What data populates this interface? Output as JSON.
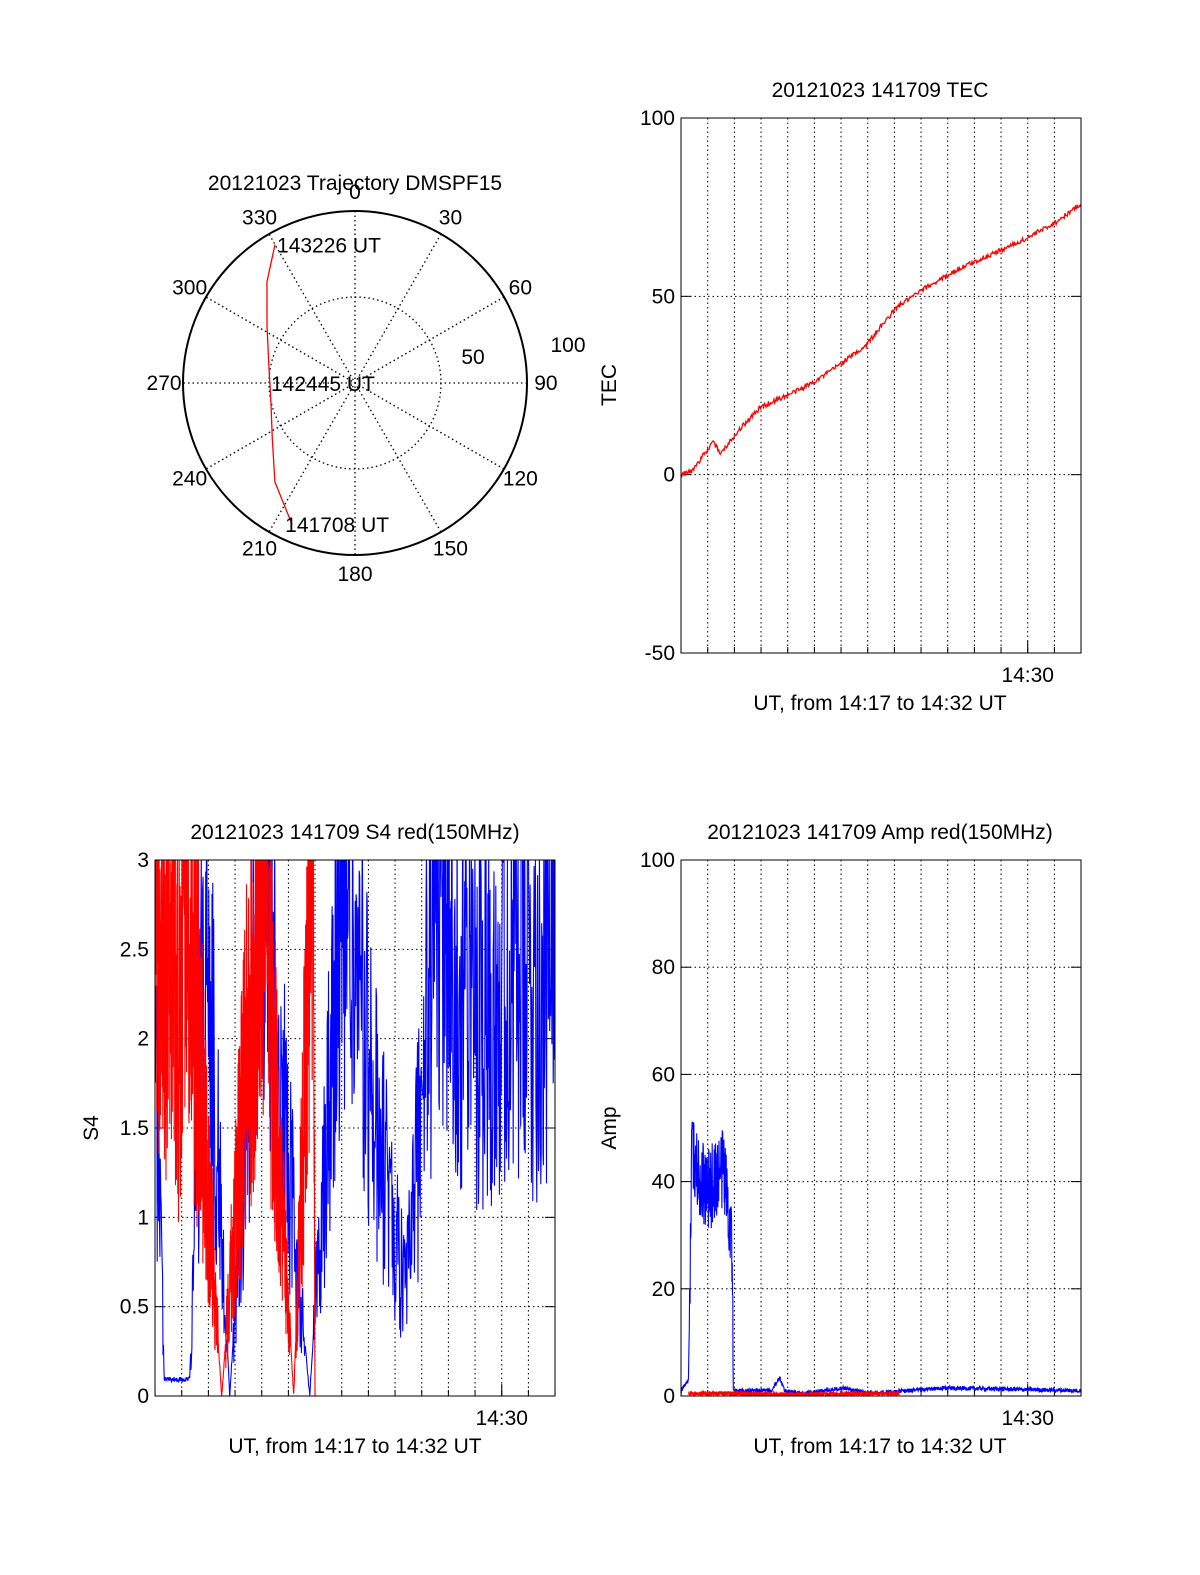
{
  "colors": {
    "red": "#ff0000",
    "blue": "#0000ff",
    "axis": "#000000"
  },
  "polar": {
    "title": "20121023 Trajectory DMSPF15",
    "azimuth_labels": [
      "0",
      "30",
      "60",
      "90",
      "120",
      "150",
      "180",
      "210",
      "240",
      "270",
      "300",
      "330"
    ],
    "radial_labels": [
      "50",
      "100"
    ],
    "annotations": [
      "143226 UT",
      "142445 UT",
      "141708 UT"
    ]
  },
  "chart_data": [
    {
      "type": "polar-trajectory",
      "title": "20121023 Trajectory DMSPF15",
      "series": [
        {
          "color": "red",
          "points": [
            {
              "az": 204,
              "zenith": 90
            },
            {
              "az": 219,
              "zenith": 74
            },
            {
              "az": 236,
              "zenith": 58
            },
            {
              "az": 258,
              "zenith": 50
            },
            {
              "az": 281,
              "zenith": 51
            },
            {
              "az": 303,
              "zenith": 61
            },
            {
              "az": 319,
              "zenith": 78
            },
            {
              "az": 330,
              "zenith": 93
            }
          ]
        }
      ],
      "annotations": [
        {
          "text": "141708 UT",
          "az": 207,
          "zenith": 92
        },
        {
          "text": "142445 UT",
          "az": 270,
          "zenith": 50
        },
        {
          "text": "143226 UT",
          "az": 330,
          "zenith": 93
        }
      ],
      "rings": [
        50,
        100
      ]
    },
    {
      "type": "line",
      "title": "20121023 141709 TEC",
      "xlabel": "UT, from 14:17 to 14:32 UT",
      "ylabel": "TEC",
      "xlim": [
        14.2833,
        14.5333
      ],
      "ylim": [
        -50,
        100
      ],
      "yticks": [
        "100",
        "50",
        "0",
        "-50"
      ],
      "xtick_label": "14:30",
      "series": [
        {
          "color": "red",
          "x": [
            14.2833,
            14.29,
            14.2983,
            14.3033,
            14.3083,
            14.3183,
            14.3333,
            14.3433,
            14.3583,
            14.3733,
            14.3983,
            14.4183,
            14.4383,
            14.4583,
            14.4783,
            14.4983,
            14.5183,
            14.5333
          ],
          "y": [
            0,
            1,
            6,
            9,
            6,
            12,
            19,
            21,
            24,
            28,
            36,
            47,
            53,
            58,
            62,
            66,
            71,
            76
          ]
        }
      ]
    },
    {
      "type": "line",
      "title": "20121023 141709 S4 red(150MHz)",
      "xlabel": "UT, from 14:17 to 14:32 UT",
      "ylabel": "S4",
      "xlim": [
        14.2833,
        14.5333
      ],
      "ylim": [
        0,
        3
      ],
      "yticks": [
        "3",
        "2.5",
        "2",
        "1.5",
        "1",
        "0.5",
        "0"
      ],
      "xtick_label": "14:30",
      "series": [
        {
          "color": "blue",
          "x": [
            14.2833,
            14.286,
            14.289,
            14.2935,
            14.298,
            14.305,
            14.315,
            14.33,
            14.35,
            14.38,
            14.4,
            14.42,
            14.44,
            14.46,
            14.48,
            14.5,
            14.52,
            14.5333
          ],
          "y": [
            1.7,
            1.4,
            0.1,
            0.09,
            0.09,
            0.1,
            2.7,
            0.0,
            2.9,
            0.0,
            2.9,
            1.6,
            0.55,
            2.8,
            2.2,
            2.4,
            2.3,
            2.3
          ]
        },
        {
          "color": "red",
          "x": [
            14.2833,
            14.288,
            14.293,
            14.298,
            14.303,
            14.308,
            14.325,
            14.35,
            14.37,
            14.382,
            14.3833
          ],
          "y": [
            3.0,
            2.2,
            2.8,
            2.1,
            3.0,
            2.3,
            0.0,
            3.0,
            0.0,
            3.0,
            0.0
          ]
        }
      ]
    },
    {
      "type": "line",
      "title": "20121023 141709 Amp red(150MHz)",
      "xlabel": "UT, from 14:17 to 14:32 UT",
      "ylabel": "Amp",
      "xlim": [
        14.2833,
        14.5333
      ],
      "ylim": [
        0,
        100
      ],
      "yticks": [
        "100",
        "80",
        "60",
        "40",
        "20",
        "0"
      ],
      "xtick_label": "14:30",
      "series": [
        {
          "color": "blue",
          "x": [
            14.2833,
            14.288,
            14.29,
            14.3,
            14.31,
            14.315,
            14.316,
            14.34,
            14.345,
            14.348,
            14.36,
            14.385,
            14.4,
            14.45,
            14.5333
          ],
          "y": [
            1,
            3,
            45,
            38,
            43,
            30,
            1,
            1,
            3.5,
            1,
            0.5,
            1.5,
            0.5,
            1.5,
            1
          ]
        },
        {
          "color": "red",
          "x": [
            14.288,
            14.31,
            14.35,
            14.4,
            14.42
          ],
          "y": [
            0.5,
            0.5,
            0.3,
            0.5,
            0.5
          ]
        }
      ]
    }
  ]
}
